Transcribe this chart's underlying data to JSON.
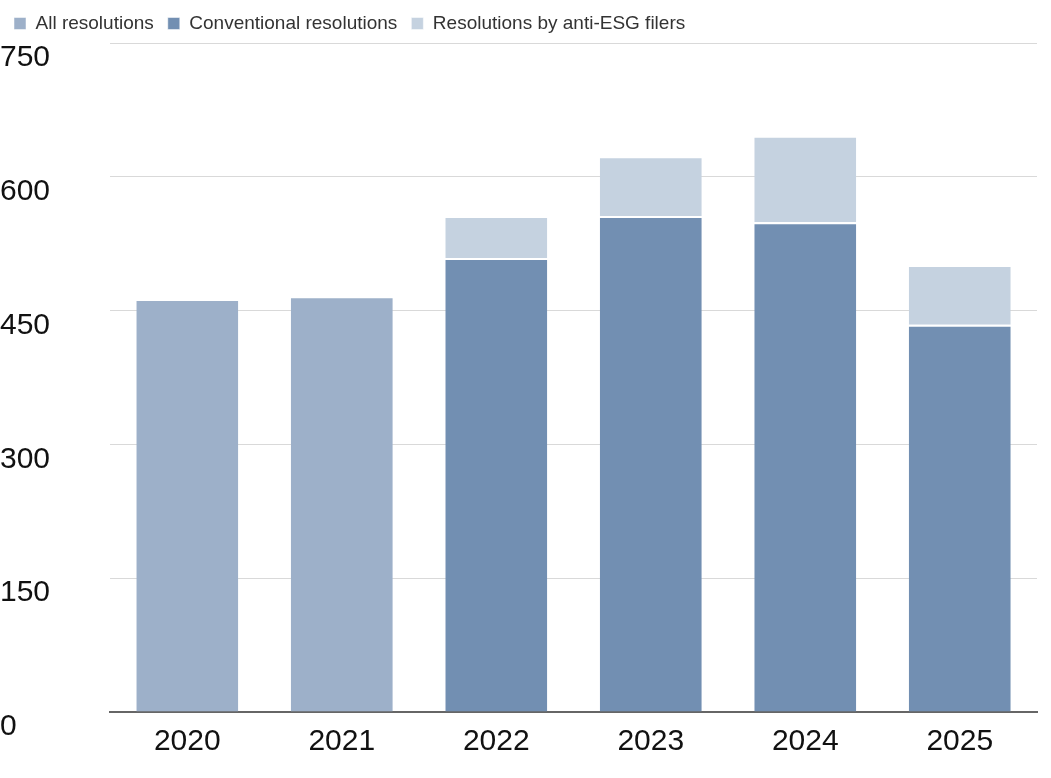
{
  "chart_data": {
    "type": "bar",
    "stacked": true,
    "categories": [
      "2020",
      "2021",
      "2022",
      "2023",
      "2024",
      "2025"
    ],
    "series": [
      {
        "name": "All resolutions",
        "color": "#9db0c9",
        "values": [
          463,
          466,
          null,
          null,
          null,
          null
        ]
      },
      {
        "name": "Conventional resolutions",
        "color": "#728fb2",
        "values": [
          null,
          null,
          509,
          556,
          549,
          434
        ]
      },
      {
        "name": "Resolutions by anti-ESG filers",
        "color": "#c5d2e0",
        "values": [
          null,
          null,
          47,
          67,
          97,
          67
        ]
      }
    ],
    "ylim": [
      0,
      750
    ],
    "yticks": [
      0,
      150,
      300,
      450,
      600,
      750
    ],
    "grid": "y",
    "legend": "top left"
  }
}
